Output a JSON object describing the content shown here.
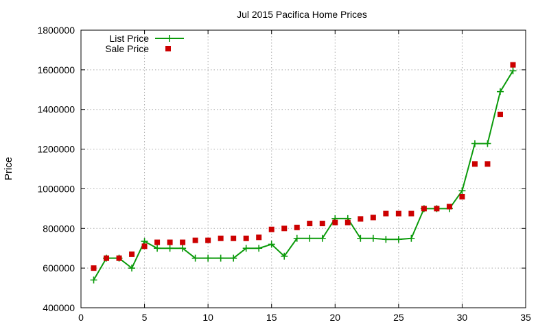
{
  "chart_data": {
    "type": "line",
    "title": "Jul 2015 Pacifica Home Prices",
    "xlabel": "",
    "ylabel": "Price",
    "xlim": [
      0,
      35
    ],
    "ylim": [
      400000,
      1800000
    ],
    "xticks": [
      0,
      5,
      10,
      15,
      20,
      25,
      30,
      35
    ],
    "yticks": [
      400000,
      600000,
      800000,
      1000000,
      1200000,
      1400000,
      1600000,
      1800000
    ],
    "grid": true,
    "legend_position": "top-left",
    "series": [
      {
        "name": "List Price",
        "style": "line+cross",
        "color": "#0a9a0a",
        "x": [
          1,
          2,
          3,
          4,
          5,
          6,
          7,
          8,
          9,
          10,
          11,
          12,
          13,
          14,
          15,
          16,
          17,
          18,
          19,
          20,
          21,
          22,
          23,
          24,
          25,
          26,
          27,
          28,
          29,
          30,
          31,
          32,
          33,
          34
        ],
        "values": [
          540000,
          650000,
          650000,
          600000,
          735000,
          700000,
          700000,
          700000,
          650000,
          650000,
          650000,
          650000,
          700000,
          700000,
          720000,
          660000,
          750000,
          750000,
          750000,
          850000,
          850000,
          750000,
          750000,
          745000,
          745000,
          750000,
          900000,
          900000,
          900000,
          990000,
          1228000,
          1228000,
          1490000,
          1595000
        ]
      },
      {
        "name": "Sale Price",
        "style": "square-markers",
        "color": "#cc0000",
        "x": [
          1,
          2,
          3,
          4,
          5,
          6,
          7,
          8,
          9,
          10,
          11,
          12,
          13,
          14,
          15,
          16,
          17,
          18,
          19,
          20,
          21,
          22,
          23,
          24,
          25,
          26,
          27,
          28,
          29,
          30,
          31,
          32,
          33,
          34
        ],
        "values": [
          600000,
          650000,
          650000,
          670000,
          710000,
          730000,
          730000,
          730000,
          740000,
          740000,
          750000,
          750000,
          750000,
          755000,
          795000,
          800000,
          805000,
          825000,
          825000,
          830000,
          830000,
          848000,
          855000,
          875000,
          875000,
          875000,
          900000,
          900000,
          910000,
          960000,
          1125000,
          1125000,
          1375000,
          1625000
        ]
      }
    ]
  }
}
